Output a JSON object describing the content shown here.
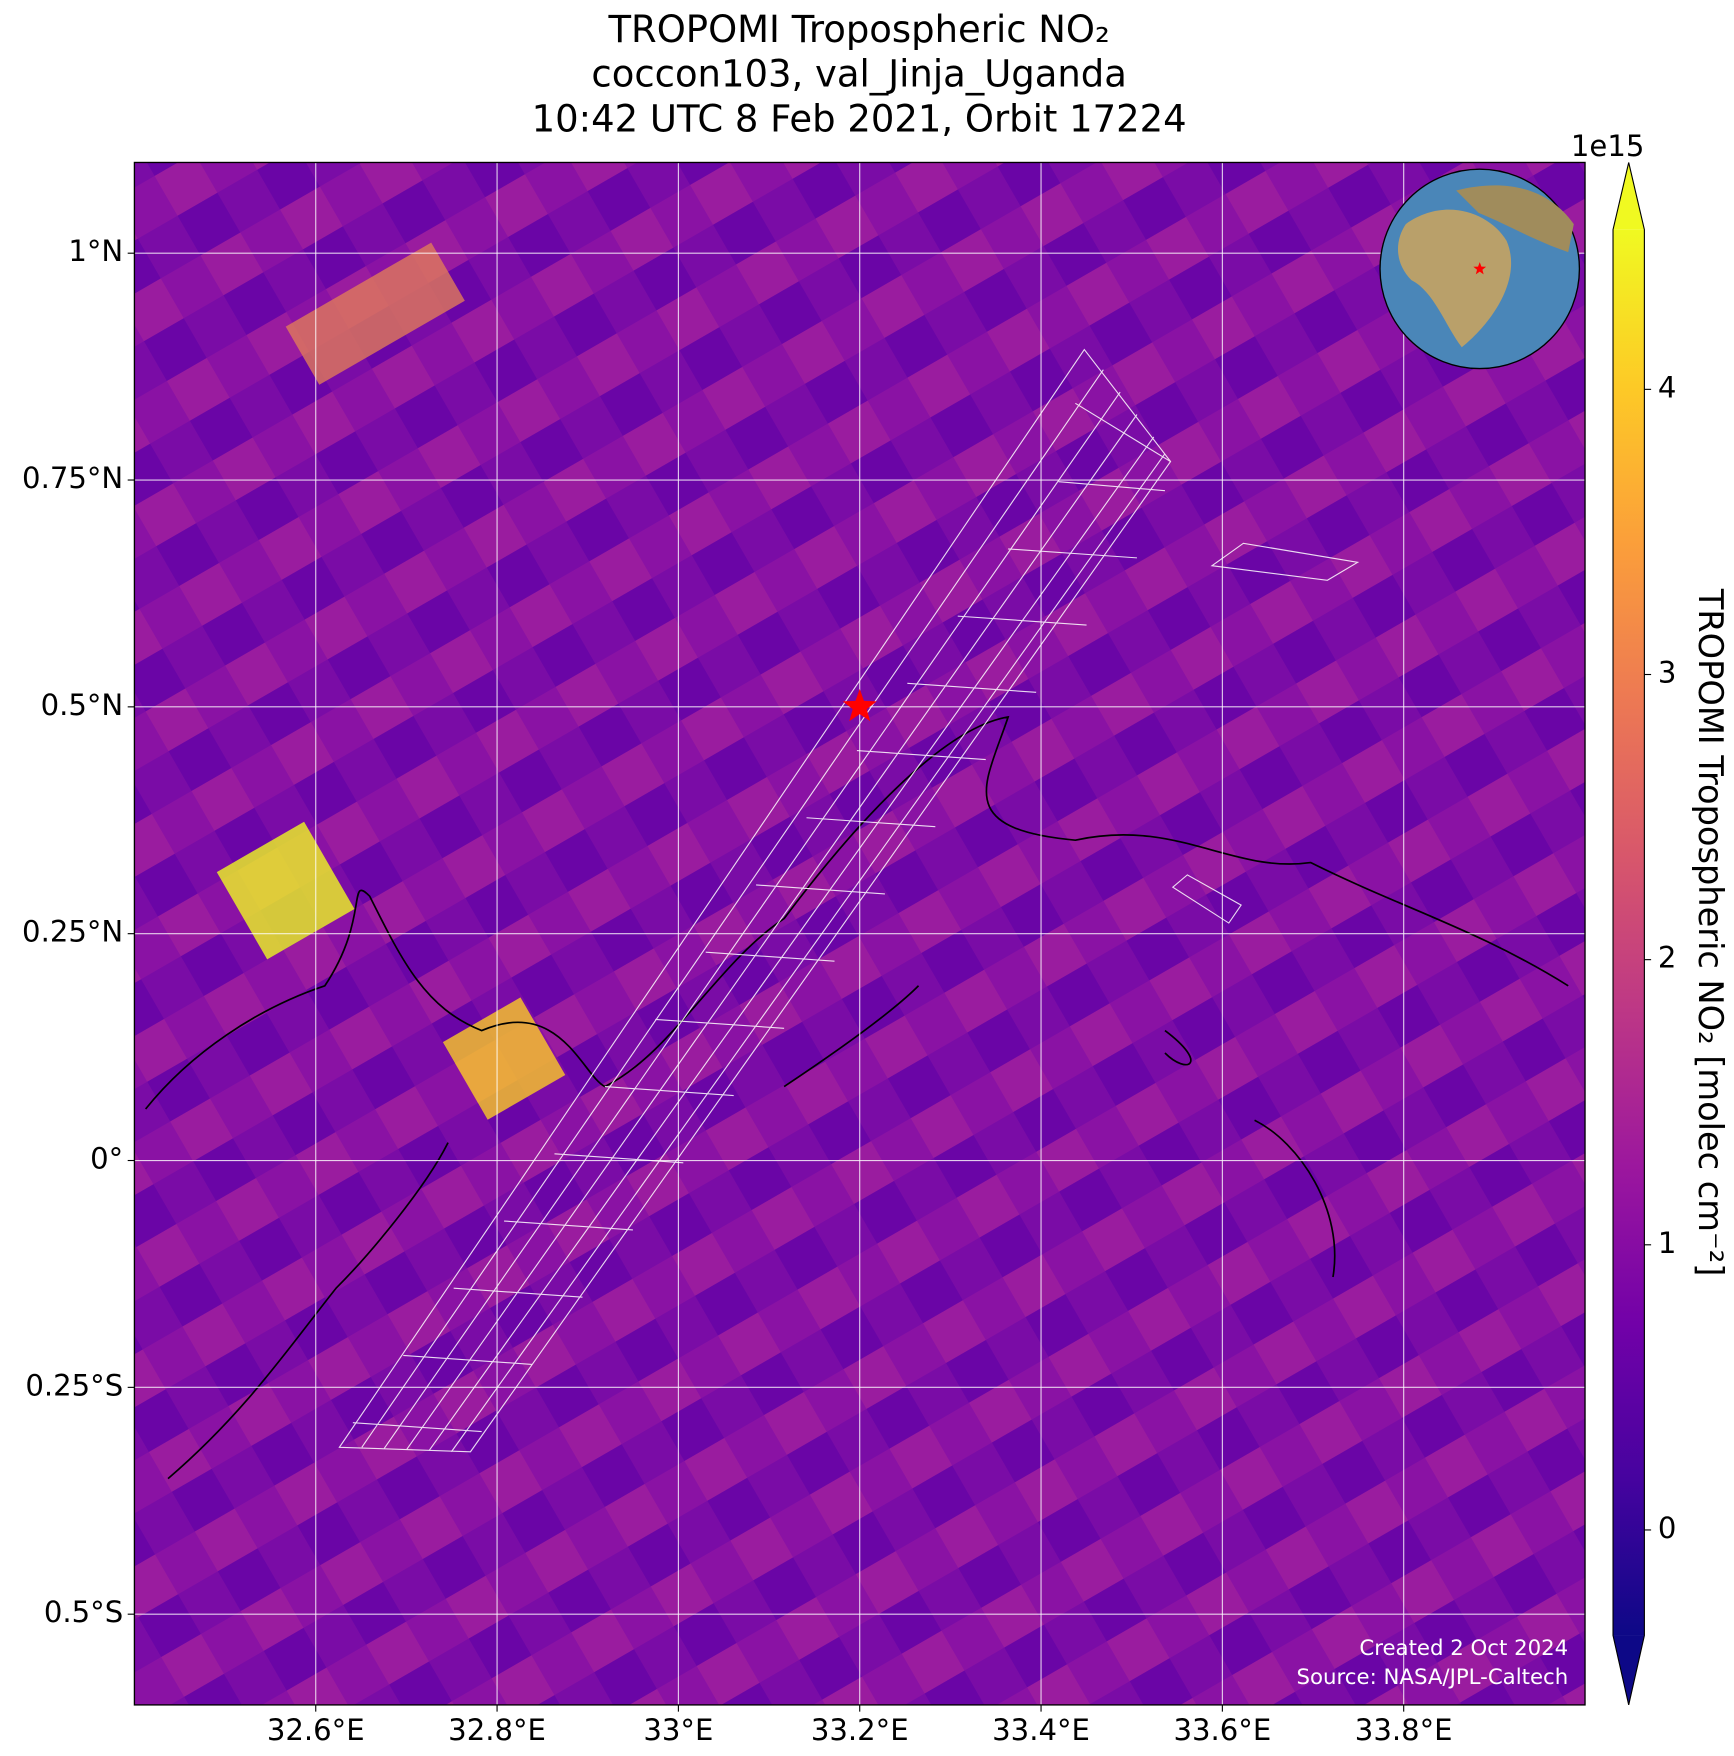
{
  "chart_data": {
    "type": "map",
    "title": [
      "TROPOMI Tropospheric NO₂",
      "coccon103, val_Jinja_Uganda",
      "10:42 UTC 8 Feb 2021, Orbit 17224"
    ],
    "xlim": [
      32.4,
      34.0
    ],
    "ylim": [
      -0.6,
      1.1
    ],
    "xticks": [
      {
        "value": 32.6,
        "label": "32.6°E"
      },
      {
        "value": 32.8,
        "label": "32.8°E"
      },
      {
        "value": 33.0,
        "label": "33°E"
      },
      {
        "value": 33.2,
        "label": "33.2°E"
      },
      {
        "value": 33.4,
        "label": "33.4°E"
      },
      {
        "value": 33.6,
        "label": "33.6°E"
      },
      {
        "value": 33.8,
        "label": "33.8°E"
      }
    ],
    "yticks": [
      {
        "value": -0.5,
        "label": "0.5°S"
      },
      {
        "value": -0.25,
        "label": "0.25°S"
      },
      {
        "value": 0,
        "label": "0°"
      },
      {
        "value": 0.25,
        "label": "0.25°N"
      },
      {
        "value": 0.5,
        "label": "0.5°N"
      },
      {
        "value": 0.75,
        "label": "0.75°N"
      },
      {
        "value": 1,
        "label": "1°N"
      }
    ],
    "grid": true,
    "marker": {
      "lon": 33.2,
      "lat": 0.5,
      "color": "#ff0000"
    },
    "colorbar": {
      "label": "TROPOMI Tropospheric NO₂ [molec cm⁻²]",
      "multiplier": "1e15",
      "lim": [
        -0.37,
        4.56
      ],
      "ticks": [
        0,
        1,
        2,
        3,
        4
      ],
      "colors": [
        "#0d0887",
        "#46039f",
        "#7201a8",
        "#9c179e",
        "#bd3786",
        "#d8576b",
        "#ed7953",
        "#fb9f3a",
        "#fdca26",
        "#f0f921"
      ]
    },
    "annotations": [
      "Created 2 Oct 2024",
      "Source: NASA/JPL-Caltech"
    ]
  }
}
